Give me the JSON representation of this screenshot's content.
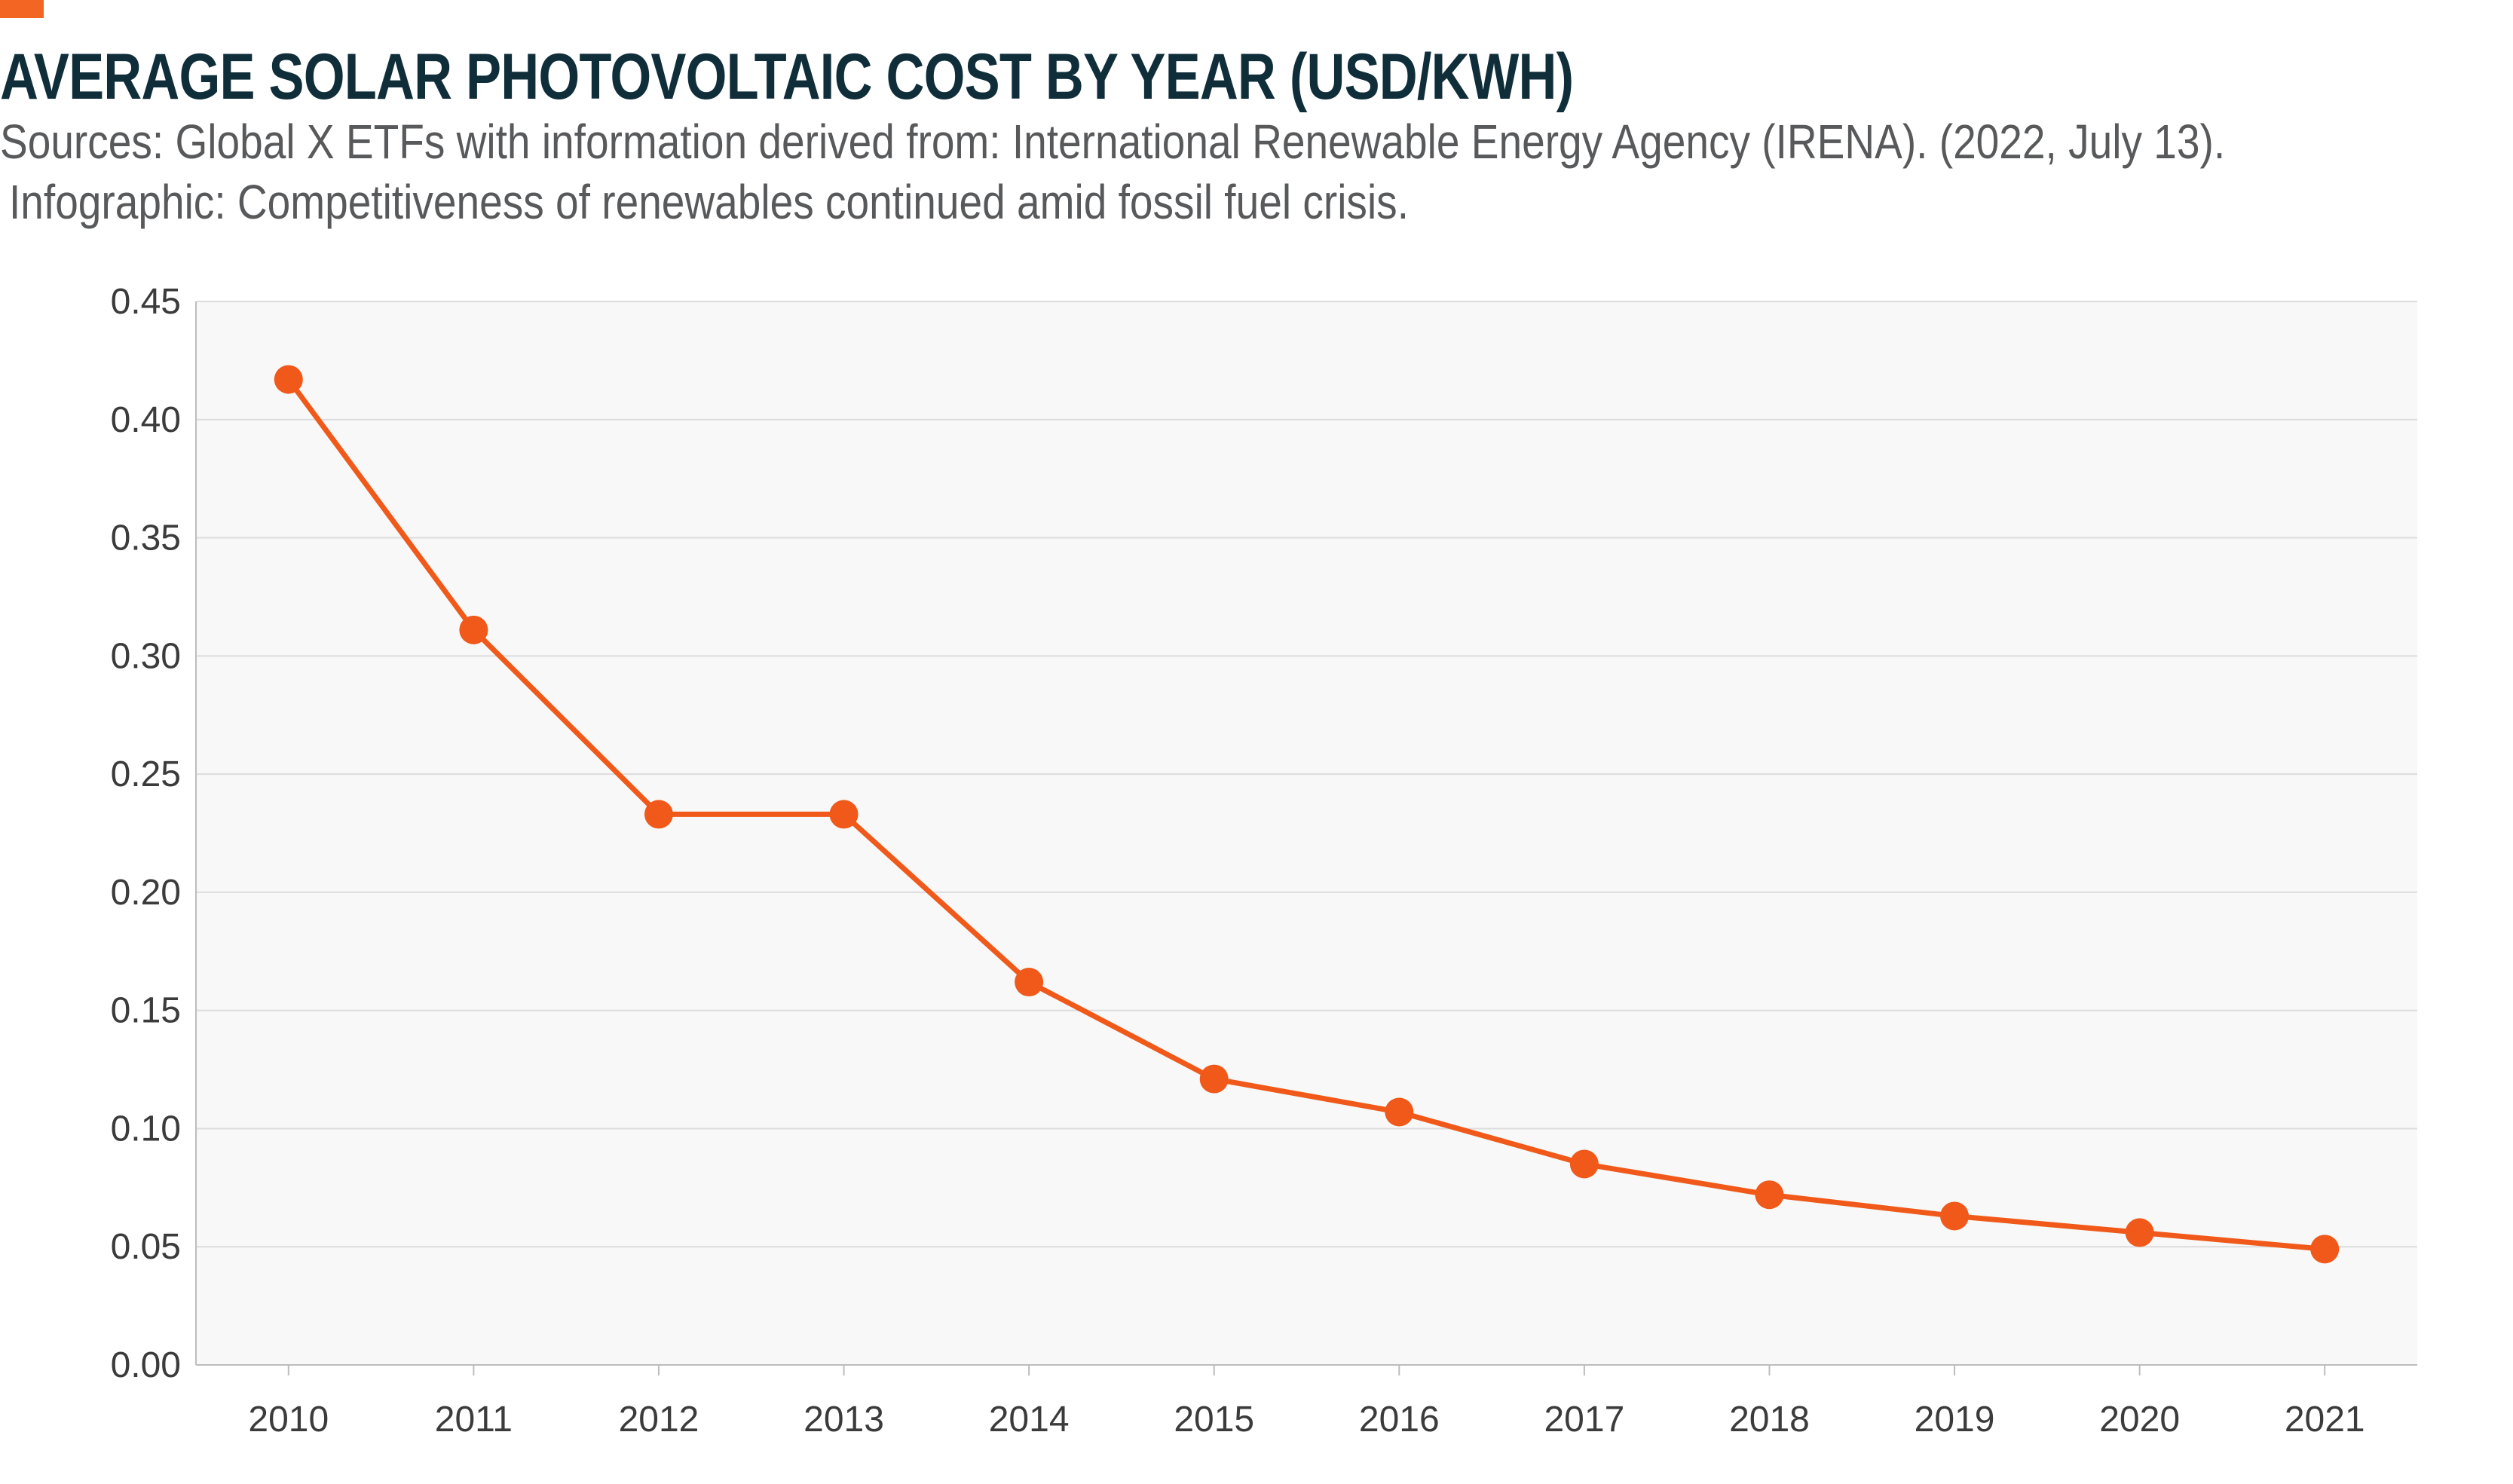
{
  "header": {
    "title": "AVERAGE SOLAR PHOTOVOLTAIC COST BY YEAR (USD/KWH)",
    "source_line1": "Sources: Global X ETFs with information derived from: International Renewable Energy Agency (IRENA). (2022, July 13).",
    "source_line2": "Infographic: Competitiveness of renewables continued amid fossil fuel crisis."
  },
  "colors": {
    "accent": "#f26522",
    "series": "#f0591a",
    "title": "#0f2e3a",
    "plot_background": "#f7f8f7",
    "gridline": "#dcdcdc"
  },
  "chart_data": {
    "type": "line",
    "title": "AVERAGE SOLAR PHOTOVOLTAIC COST BY YEAR (USD/KWH)",
    "xlabel": "",
    "ylabel": "",
    "categories": [
      "2010",
      "2011",
      "2012",
      "2013",
      "2014",
      "2015",
      "2016",
      "2017",
      "2018",
      "2019",
      "2020",
      "2021"
    ],
    "series": [
      {
        "values": [
          0.417,
          0.311,
          0.233,
          0.233,
          0.162,
          0.121,
          0.107,
          0.085,
          0.072,
          0.063,
          0.056,
          0.049
        ]
      }
    ],
    "ylim": [
      0,
      0.45
    ],
    "yticks": [
      "0.00",
      "0.05",
      "0.10",
      "0.15",
      "0.20",
      "0.25",
      "0.30",
      "0.35",
      "0.40",
      "0.45"
    ],
    "grid": true,
    "markers": true,
    "legend": "none"
  }
}
